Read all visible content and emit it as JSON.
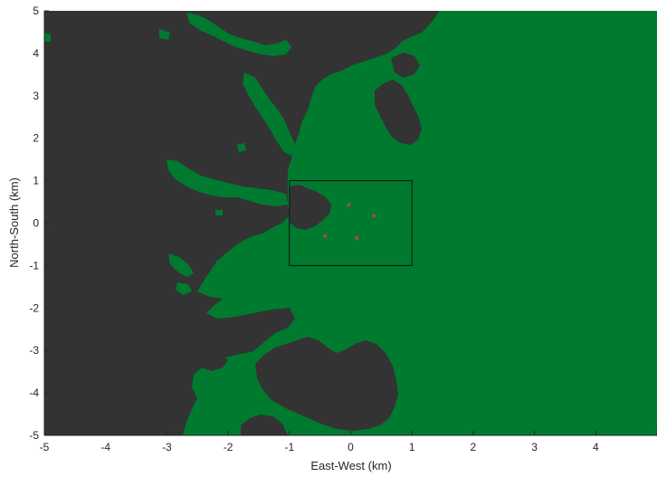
{
  "chart_data": {
    "type": "heatmap",
    "title": "",
    "xlabel": "East-West (km)",
    "ylabel": "North-South (km)",
    "xlim": [
      -5,
      5
    ],
    "ylim": [
      -5,
      5
    ],
    "x_ticks": [
      "-5",
      "-4",
      "-3",
      "-2",
      "-1",
      "0",
      "1",
      "2",
      "3",
      "4",
      "5"
    ],
    "y_ticks": [
      "5",
      "4",
      "3",
      "2",
      "1",
      "0",
      "-1",
      "-2",
      "-3",
      "-4",
      "-5"
    ],
    "grid": false,
    "colors": {
      "not_visible": "#333333",
      "visible": "#007a2f",
      "marker": "#b5482b",
      "box": "#111111"
    },
    "study_area_box": {
      "x": [
        -1,
        1
      ],
      "y": [
        -1,
        1
      ]
    },
    "markers": [
      {
        "x": -0.03,
        "y": 0.43
      },
      {
        "x": 0.38,
        "y": 0.17
      },
      {
        "x": -0.42,
        "y": -0.3
      },
      {
        "x": 0.1,
        "y": -0.35
      }
    ]
  }
}
